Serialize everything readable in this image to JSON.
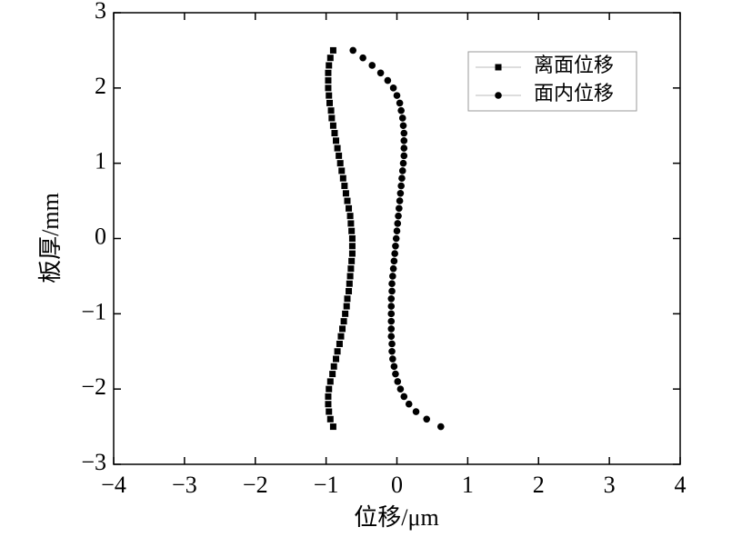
{
  "chart_data": {
    "type": "scatter",
    "xlabel": "位移/μm",
    "ylabel": "板厚/mm",
    "xlim": [
      -4,
      4
    ],
    "ylim": [
      -3,
      3
    ],
    "xticks": [
      {
        "value": -4,
        "label": "−4"
      },
      {
        "value": -3,
        "label": "−3"
      },
      {
        "value": -2,
        "label": "−2"
      },
      {
        "value": -1,
        "label": "−1"
      },
      0,
      1,
      2,
      3,
      4
    ],
    "yticks": [
      {
        "value": -3,
        "label": "−3"
      },
      {
        "value": -2,
        "label": "−2"
      },
      {
        "value": -1,
        "label": "−1"
      },
      0,
      1,
      2,
      3
    ],
    "legend": "upper right",
    "series": [
      {
        "name": "离面位移",
        "color": "#000000",
        "marker": "square",
        "x": [
          -0.9,
          -0.94,
          -0.96,
          -0.97,
          -0.97,
          -0.97,
          -0.96,
          -0.95,
          -0.93,
          -0.92,
          -0.9,
          -0.88,
          -0.86,
          -0.84,
          -0.82,
          -0.8,
          -0.78,
          -0.76,
          -0.74,
          -0.72,
          -0.7,
          -0.68,
          -0.66,
          -0.65,
          -0.64,
          -0.63,
          -0.63,
          -0.63,
          -0.64,
          -0.65,
          -0.66,
          -0.67,
          -0.68,
          -0.7,
          -0.71,
          -0.73,
          -0.75,
          -0.77,
          -0.79,
          -0.81,
          -0.84,
          -0.86,
          -0.89,
          -0.91,
          -0.94,
          -0.96,
          -0.97,
          -0.97,
          -0.96,
          -0.94,
          -0.9
        ],
        "y": [
          2.5,
          2.4,
          2.3,
          2.2,
          2.1,
          2.0,
          1.9,
          1.8,
          1.7,
          1.6,
          1.5,
          1.4,
          1.3,
          1.2,
          1.1,
          1.0,
          0.9,
          0.8,
          0.7,
          0.6,
          0.5,
          0.4,
          0.3,
          0.2,
          0.1,
          0.0,
          -0.1,
          -0.2,
          -0.3,
          -0.4,
          -0.5,
          -0.6,
          -0.7,
          -0.8,
          -0.9,
          -1.0,
          -1.1,
          -1.2,
          -1.3,
          -1.4,
          -1.5,
          -1.6,
          -1.7,
          -1.8,
          -1.9,
          -2.0,
          -2.1,
          -2.2,
          -2.3,
          -2.4,
          -2.5
        ]
      },
      {
        "name": "面内位移",
        "color": "#000000",
        "marker": "circle",
        "x": [
          -0.62,
          -0.48,
          -0.35,
          -0.23,
          -0.13,
          -0.05,
          0.0,
          0.04,
          0.06,
          0.08,
          0.09,
          0.1,
          0.1,
          0.1,
          0.1,
          0.09,
          0.08,
          0.07,
          0.06,
          0.05,
          0.04,
          0.03,
          0.02,
          0.01,
          0.0,
          -0.01,
          -0.02,
          -0.03,
          -0.04,
          -0.05,
          -0.06,
          -0.07,
          -0.07,
          -0.08,
          -0.08,
          -0.08,
          -0.08,
          -0.08,
          -0.08,
          -0.07,
          -0.07,
          -0.06,
          -0.04,
          -0.02,
          0.01,
          0.05,
          0.1,
          0.17,
          0.27,
          0.42,
          0.62
        ],
        "y": [
          2.5,
          2.4,
          2.3,
          2.2,
          2.1,
          2.0,
          1.9,
          1.8,
          1.7,
          1.6,
          1.5,
          1.4,
          1.3,
          1.2,
          1.1,
          1.0,
          0.9,
          0.8,
          0.7,
          0.6,
          0.5,
          0.4,
          0.3,
          0.2,
          0.1,
          0.0,
          -0.1,
          -0.2,
          -0.3,
          -0.4,
          -0.5,
          -0.6,
          -0.7,
          -0.8,
          -0.9,
          -1.0,
          -1.1,
          -1.2,
          -1.3,
          -1.4,
          -1.5,
          -1.6,
          -1.7,
          -1.8,
          -1.9,
          -2.0,
          -2.1,
          -2.2,
          -2.3,
          -2.4,
          -2.5
        ]
      }
    ]
  }
}
